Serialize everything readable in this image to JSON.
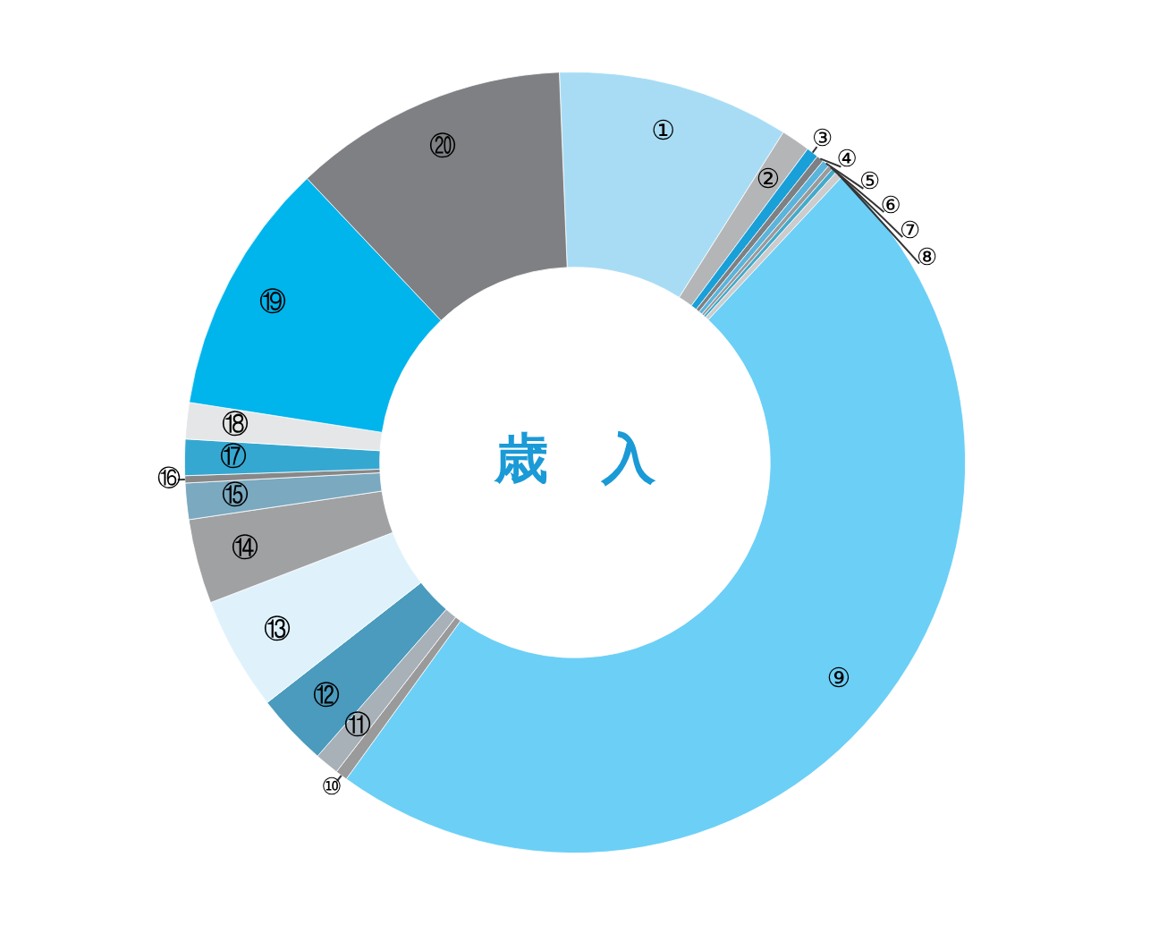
{
  "chart_data": {
    "type": "donut",
    "title": "歳　入",
    "categories": [
      "①",
      "②",
      "③",
      "④",
      "⑤",
      "⑥",
      "⑦",
      "⑧",
      "⑨",
      "⑩",
      "⑪",
      "⑫",
      "⑬",
      "⑭",
      "⑮",
      "⑯",
      "⑰",
      "⑱",
      "⑲",
      "⑳"
    ],
    "values": [
      9.6,
      1.2,
      0.5,
      0.3,
      0.3,
      0.2,
      0.2,
      0.3,
      48.0,
      0.5,
      1.0,
      3.0,
      4.7,
      3.5,
      1.5,
      0.3,
      1.5,
      1.5,
      10.5,
      11.4
    ],
    "colors": [
      "#a8dcf5",
      "#b4b5b7",
      "#1aa0d8",
      "#7f8083",
      "#5ab4dc",
      "#9a9a9a",
      "#44aacc",
      "#cccccc",
      "#6ccff6",
      "#9a9a9a",
      "#a8b0b8",
      "#4a9bbd",
      "#dff2fc",
      "#a0a1a3",
      "#7aa9c0",
      "#888888",
      "#35a8d2",
      "#e5e6e7",
      "#00b4ec",
      "#7f8083"
    ],
    "legend": false
  }
}
